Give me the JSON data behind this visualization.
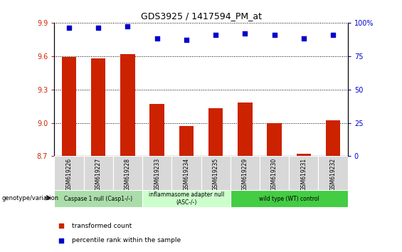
{
  "title": "GDS3925 / 1417594_PM_at",
  "samples": [
    "GSM619226",
    "GSM619227",
    "GSM619228",
    "GSM619233",
    "GSM619234",
    "GSM619235",
    "GSM619229",
    "GSM619230",
    "GSM619231",
    "GSM619232"
  ],
  "transformed_counts": [
    9.59,
    9.58,
    9.62,
    9.17,
    8.97,
    9.13,
    9.18,
    9.0,
    8.72,
    9.02
  ],
  "percentile_ranks": [
    96,
    96,
    97,
    88,
    87,
    91,
    92,
    91,
    88,
    91
  ],
  "bar_color": "#cc2200",
  "dot_color": "#0000cc",
  "ylim_left": [
    8.7,
    9.9
  ],
  "yticks_left": [
    8.7,
    9.0,
    9.3,
    9.6,
    9.9
  ],
  "ylim_right": [
    0,
    100
  ],
  "yticks_right": [
    0,
    25,
    50,
    75,
    100
  ],
  "ytick_labels_right": [
    "0",
    "25",
    "50",
    "75",
    "100%"
  ],
  "groups": [
    {
      "label": "Caspase 1 null (Casp1-/-)",
      "start": 0,
      "end": 3,
      "color": "#aaddaa"
    },
    {
      "label": "inflammasome adapter null\n(ASC-/-)",
      "start": 3,
      "end": 6,
      "color": "#ccffcc"
    },
    {
      "label": "wild type (WT) control",
      "start": 6,
      "end": 10,
      "color": "#44cc44"
    }
  ],
  "genotype_label": "genotype/variation",
  "legend_items": [
    {
      "label": "transformed count",
      "color": "#cc2200"
    },
    {
      "label": "percentile rank within the sample",
      "color": "#0000cc"
    }
  ]
}
